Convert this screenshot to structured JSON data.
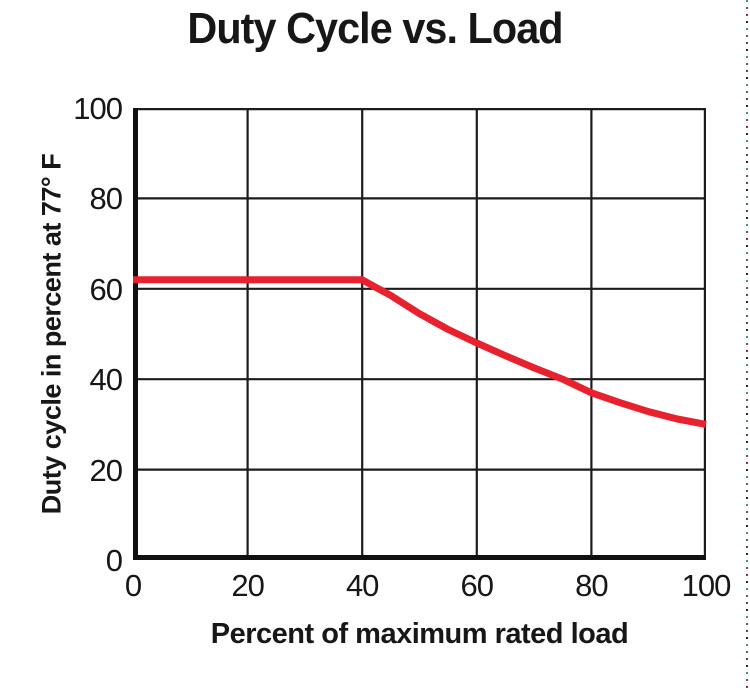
{
  "figure": {
    "title": "Duty Cycle vs. Load",
    "xlabel": "Percent of maximum rated load",
    "ylabel": "Duty cycle in percent at 77° F"
  },
  "chart_data": {
    "type": "line",
    "title": "Duty Cycle vs. Load",
    "xlabel": "Percent of maximum rated load",
    "ylabel": "Duty cycle in percent at 77° F",
    "xlim": [
      0,
      100
    ],
    "ylim": [
      0,
      100
    ],
    "x_ticks": [
      0,
      20,
      40,
      60,
      80,
      100
    ],
    "y_ticks": [
      0,
      20,
      40,
      60,
      80,
      100
    ],
    "grid": true,
    "legend": false,
    "series": [
      {
        "name": "duty-cycle-curve",
        "color": "#e8212e",
        "points": [
          [
            0,
            62
          ],
          [
            40,
            62
          ],
          [
            45,
            58.5
          ],
          [
            50,
            54.5
          ],
          [
            55,
            51
          ],
          [
            60,
            48
          ],
          [
            65,
            45.2
          ],
          [
            70,
            42.5
          ],
          [
            75,
            40
          ],
          [
            80,
            37
          ],
          [
            85,
            34.8
          ],
          [
            90,
            32.8
          ],
          [
            95,
            31.2
          ],
          [
            100,
            30
          ]
        ]
      }
    ]
  },
  "colors": {
    "background": "#ffffff",
    "grid": "#1c1c1c",
    "axis": "#111111",
    "line": "#e8212e",
    "text": "#171717"
  }
}
